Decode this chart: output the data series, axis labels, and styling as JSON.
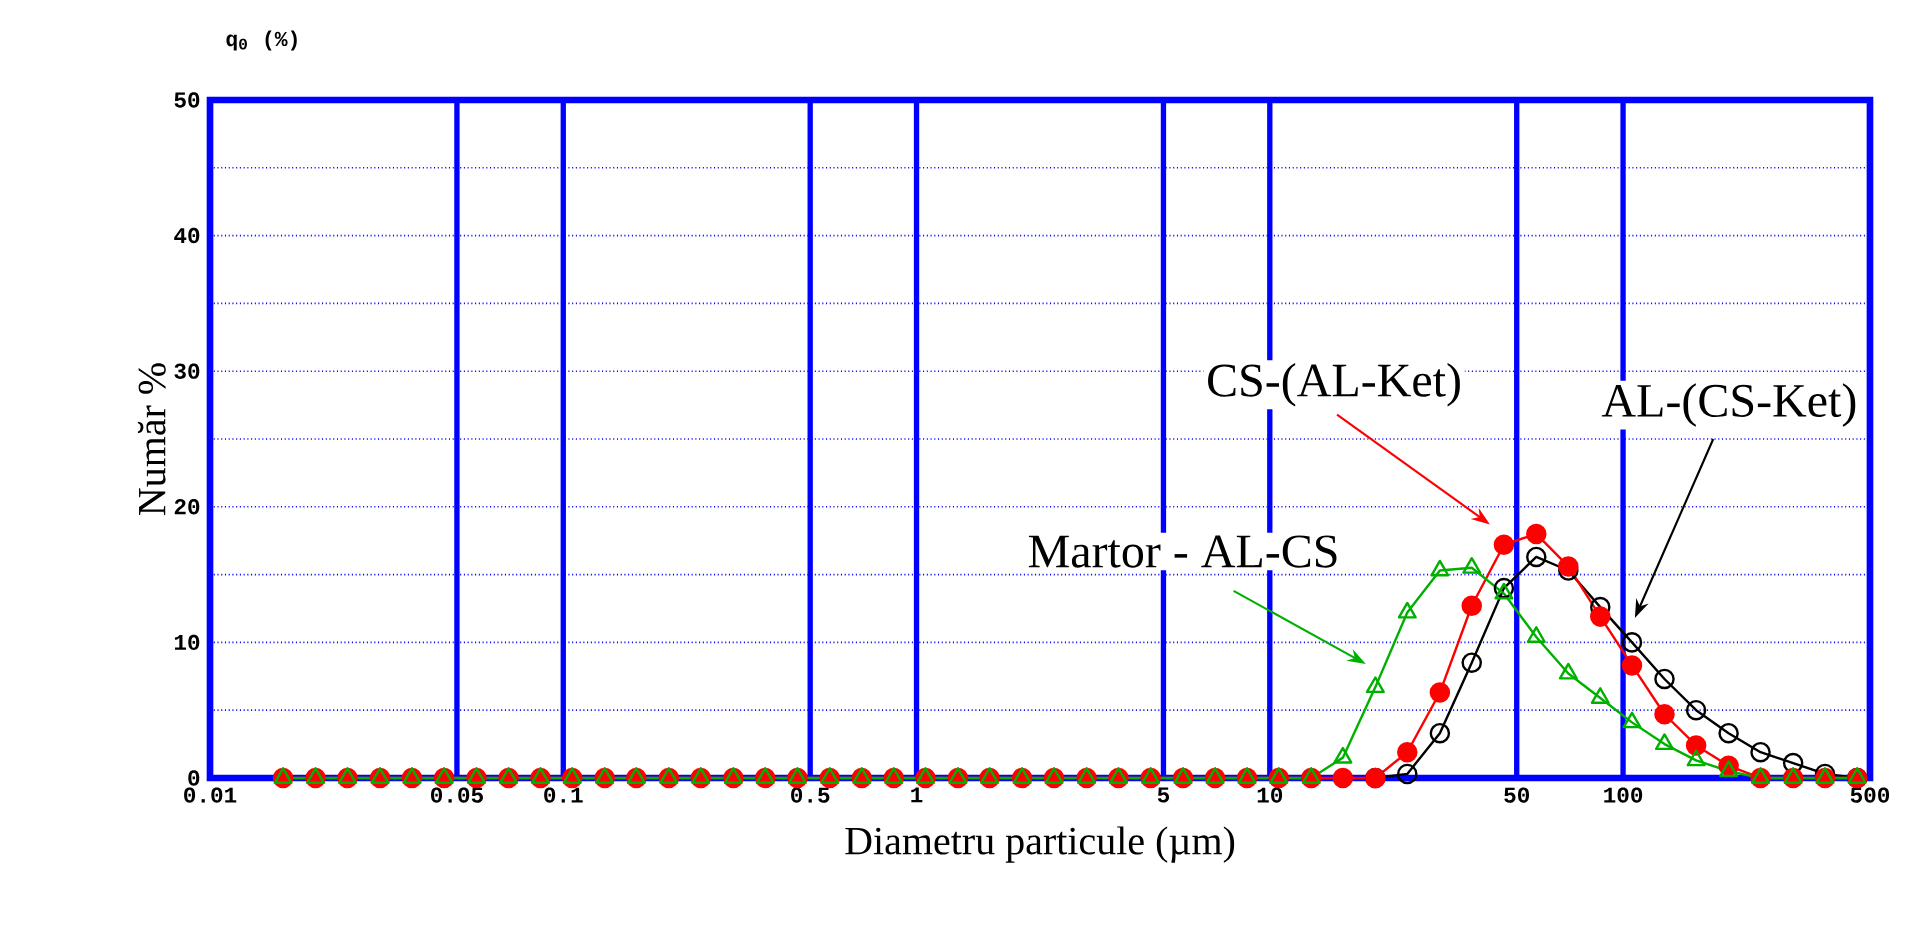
{
  "chart_data": {
    "type": "line",
    "xlabel": "Diametru particule (µm)",
    "ylabel": "Număr %",
    "annotations": [
      "q$_{0}$ (%)"
    ],
    "log": "x",
    "grid": true,
    "xlim": [
      0.01,
      500
    ],
    "xticks": [
      0.01,
      0.05,
      0.1,
      0.5,
      1,
      5,
      10,
      50,
      100,
      500
    ],
    "ylim": [
      0,
      50
    ],
    "yticks": [
      0,
      10,
      20,
      30,
      40,
      50
    ],
    "x": [
      0.0161,
      0.0199,
      0.0245,
      0.0303,
      0.0373,
      0.046,
      0.0568,
      0.07,
      0.0862,
      0.106,
      0.131,
      0.161,
      0.199,
      0.245,
      0.303,
      0.373,
      0.46,
      0.568,
      0.7,
      0.862,
      1.06,
      1.31,
      1.61,
      1.99,
      2.45,
      3.03,
      3.73,
      4.6,
      5.68,
      7.0,
      8.62,
      10.6,
      13.1,
      16.1,
      19.9,
      24.5,
      30.3,
      37.3,
      46.0,
      56.8,
      70.0,
      86.2,
      106,
      131,
      161,
      199,
      245,
      303,
      373,
      460
    ],
    "series": [
      {
        "name": "AL-(CS-Ket)",
        "color": "#000000",
        "marker": "open circle",
        "values": [
          null,
          null,
          null,
          null,
          null,
          null,
          null,
          null,
          null,
          null,
          null,
          null,
          null,
          null,
          null,
          null,
          null,
          null,
          null,
          null,
          null,
          null,
          null,
          null,
          null,
          null,
          null,
          null,
          null,
          null,
          null,
          null,
          null,
          null,
          0,
          0.3,
          3.3,
          8.5,
          14,
          16.3,
          15.3,
          12.6,
          10.0,
          7.3,
          5.0,
          3.3,
          1.9,
          1.1,
          0.3,
          0
        ]
      },
      {
        "name": "CS-(AL-Ket)",
        "color": "#ff0000",
        "marker": "circle",
        "values": [
          0,
          0,
          0,
          0,
          0,
          0,
          0,
          0,
          0,
          0,
          0,
          0,
          0,
          0,
          0,
          0,
          0,
          0,
          0,
          0,
          0,
          0,
          0,
          0,
          0,
          0,
          0,
          0,
          0,
          0,
          0,
          0,
          0,
          0,
          0,
          1.9,
          6.3,
          12.7,
          17.2,
          18.0,
          15.6,
          11.9,
          8.3,
          4.7,
          2.4,
          0.9,
          0,
          0,
          0,
          0
        ]
      },
      {
        "name": "Martor - AL-CS",
        "color": "#00b000",
        "marker": "triangle",
        "values": [
          0,
          0,
          0,
          0,
          0,
          0,
          0,
          0,
          0,
          0,
          0,
          0,
          0,
          0,
          0,
          0,
          0,
          0,
          0,
          0,
          0,
          0,
          0,
          0,
          0,
          0,
          0,
          0,
          0,
          0,
          0,
          0,
          0,
          1.5,
          6.7,
          12.2,
          15.3,
          15.5,
          13.6,
          10.4,
          7.7,
          5.9,
          4.1,
          2.5,
          1.3,
          0.5,
          0,
          0,
          0,
          0
        ]
      }
    ]
  }
}
